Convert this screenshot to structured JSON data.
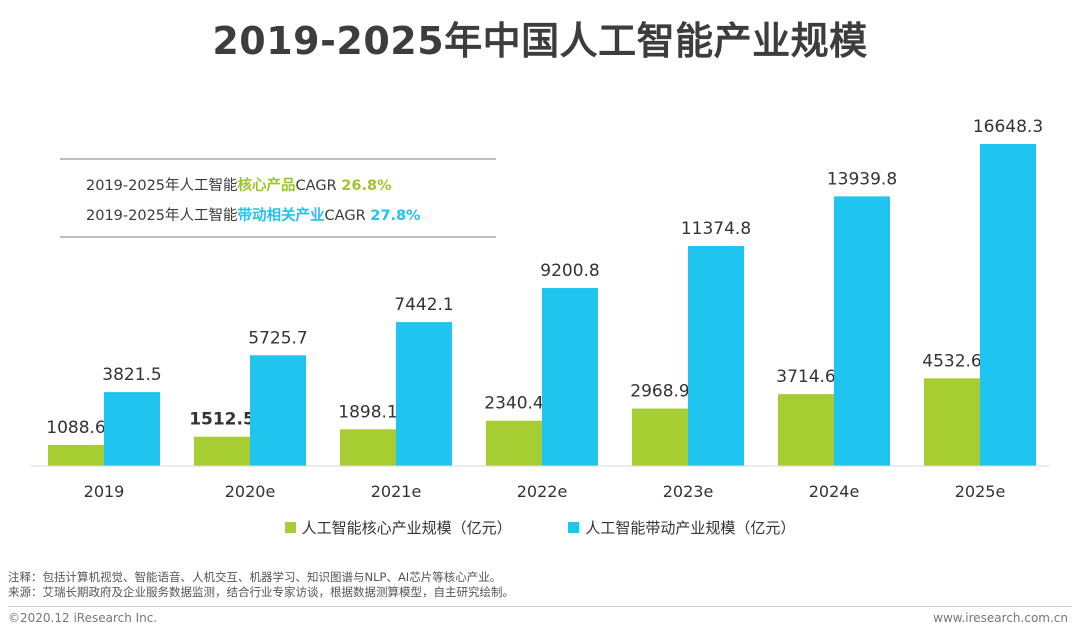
{
  "title": "2019-2025年中国人工智能产业规模",
  "cagr": {
    "line1_prefix": "2019-2025年人工智能",
    "line1_highlight": "核心产品",
    "line1_suffix": "CAGR ",
    "line1_value": "26.8%",
    "line2_prefix": "2019-2025年人工智能",
    "line2_highlight": "带动相关产业",
    "line2_suffix": "CAGR ",
    "line2_value": "27.8%"
  },
  "colors": {
    "core": "#a6cd32",
    "related": "#1fc4ef"
  },
  "chart_data": {
    "type": "bar",
    "title": "2019-2025年中国人工智能产业规模",
    "categories": [
      "2019",
      "2020e",
      "2021e",
      "2022e",
      "2023e",
      "2024e",
      "2025e"
    ],
    "series": [
      {
        "name": "人工智能核心产业规模（亿元）",
        "values": [
          1088.6,
          1512.5,
          1898.1,
          2340.4,
          2968.9,
          3714.6,
          4532.6
        ],
        "labels": [
          "1088.6",
          "1512.5",
          "1898.1",
          "2340.4",
          "2968.9",
          "3714.6",
          "4532.6"
        ]
      },
      {
        "name": "人工智能带动产业规模（亿元）",
        "values": [
          3821.5,
          5725.7,
          7442.1,
          9200.8,
          11374.8,
          13939.8,
          16648.3
        ],
        "labels": [
          "3821.5",
          "5725.7",
          "7442.1",
          "9200.8",
          "11374.8",
          "13939.8",
          "16648.3"
        ]
      }
    ],
    "xlabel": "",
    "ylabel": "",
    "ylim": [
      0,
      16648.3
    ],
    "grid": false,
    "legend": "bottom"
  },
  "legend": {
    "core": "人工智能核心产业规模（亿元）",
    "related": "人工智能带动产业规模（亿元）"
  },
  "notes": {
    "note": "注释：包括计算机视觉、智能语音、人机交互、机器学习、知识图谱与NLP、AI芯片等核心产业。",
    "source": "来源：艾瑞长期政府及企业服务数据监测，结合行业专家访谈，根据数据测算模型，自主研究绘制。"
  },
  "footer": {
    "copyright": "©2020.12 iResearch Inc.",
    "website": "www.iresearch.com.cn"
  }
}
